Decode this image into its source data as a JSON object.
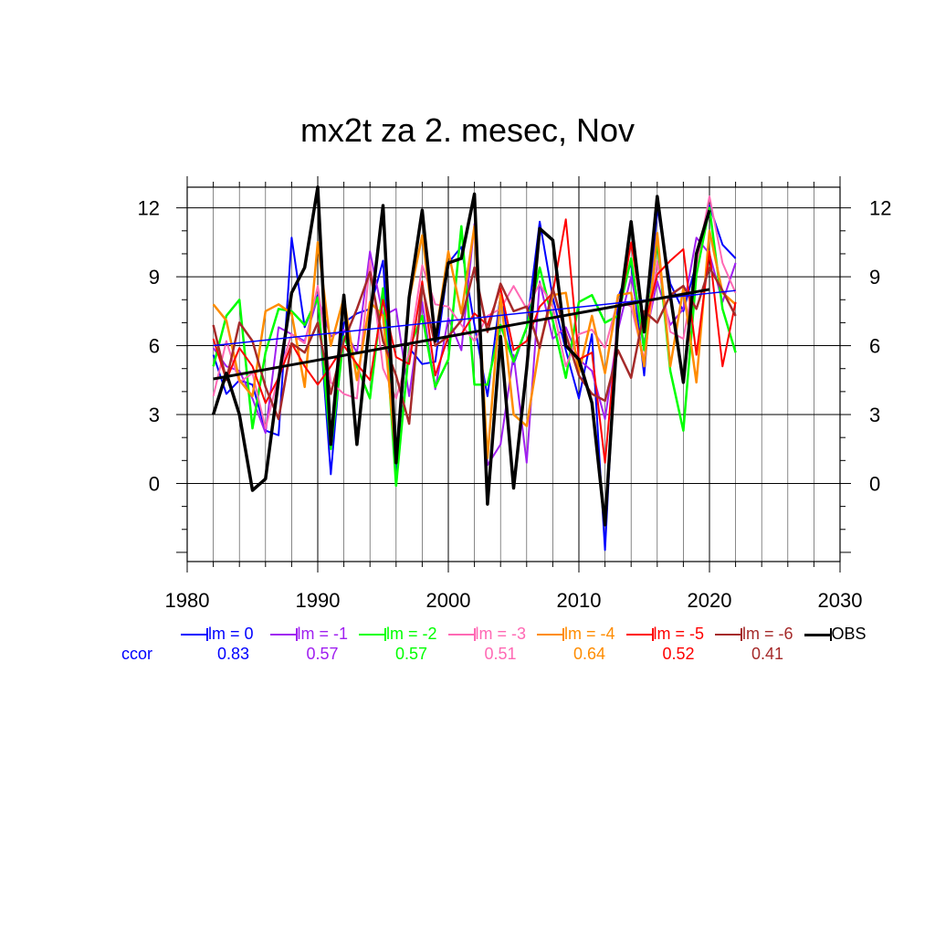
{
  "chart_data": {
    "type": "line",
    "title": "mx2t za 2. mesec, Nov",
    "xlabel": "",
    "ylabel": "",
    "xlim": [
      1980,
      2030
    ],
    "ylim": [
      -3.4,
      12.9
    ],
    "xticks": [
      1980,
      1990,
      2000,
      2010,
      2020,
      2030
    ],
    "yticks": [
      0,
      3,
      6,
      9,
      12
    ],
    "x": [
      1982,
      1983,
      1984,
      1985,
      1986,
      1987,
      1988,
      1989,
      1990,
      1991,
      1992,
      1993,
      1994,
      1995,
      1996,
      1997,
      1998,
      1999,
      2000,
      2001,
      2002,
      2003,
      2004,
      2005,
      2006,
      2007,
      2008,
      2009,
      2010,
      2011,
      2012,
      2013,
      2014,
      2015,
      2016,
      2017,
      2018,
      2019,
      2020,
      2021,
      2022
    ],
    "ccor_label": "ccor",
    "series": [
      {
        "name": "lm = 0",
        "color": "#0000ff",
        "width": 2,
        "ccor": "0.83",
        "values": [
          5.6,
          3.9,
          4.5,
          4.3,
          2.3,
          2.1,
          10.7,
          6.8,
          8.2,
          0.4,
          7.0,
          7.4,
          7.6,
          9.7,
          0.3,
          5.9,
          5.2,
          5.3,
          9.6,
          10.3,
          6.9,
          3.8,
          8.2,
          5.2,
          6.8,
          11.4,
          8.1,
          5.8,
          3.7,
          6.5,
          -2.9,
          8.1,
          9.6,
          4.7,
          12.0,
          8.7,
          7.5,
          9.6,
          12.1,
          10.4,
          9.8
        ]
      },
      {
        "name": "lm = -1",
        "color": "#a020f0",
        "width": 2,
        "ccor": "0.57",
        "values": [
          5.9,
          5.1,
          4.9,
          3.7,
          2.2,
          6.8,
          6.5,
          6.2,
          8.1,
          6.4,
          6.7,
          5.7,
          10.1,
          7.3,
          7.6,
          3.8,
          7.9,
          4.1,
          7.2,
          5.8,
          11.3,
          0.8,
          1.7,
          5.6,
          0.9,
          8.8,
          6.3,
          6.8,
          5.4,
          4.9,
          2.8,
          6.7,
          9.0,
          6.1,
          8.8,
          6.9,
          7.6,
          10.7,
          10.0,
          7.9,
          9.6
        ]
      },
      {
        "name": "lm = -2",
        "color": "#00ff00",
        "width": 2.5,
        "ccor": "0.57",
        "values": [
          5.1,
          7.3,
          8.0,
          2.4,
          5.7,
          7.6,
          7.5,
          6.9,
          8.1,
          1.5,
          6.4,
          5.1,
          3.7,
          8.5,
          -0.1,
          5.9,
          7.3,
          4.2,
          5.4,
          11.2,
          4.3,
          4.3,
          6.9,
          5.3,
          6.8,
          9.4,
          7.1,
          4.6,
          7.9,
          8.2,
          7.0,
          7.3,
          9.8,
          5.8,
          10.6,
          4.9,
          2.3,
          9.1,
          12.0,
          7.6,
          5.7
        ]
      },
      {
        "name": "lm = -3",
        "color": "#ff69b4",
        "width": 2,
        "ccor": "0.51",
        "values": [
          3.8,
          6.2,
          4.4,
          4.8,
          2.4,
          4.7,
          6.5,
          6.1,
          8.6,
          4.4,
          3.9,
          3.7,
          9.7,
          5.0,
          3.7,
          5.7,
          9.5,
          7.8,
          7.7,
          6.9,
          6.2,
          7.3,
          7.6,
          8.6,
          7.6,
          8.7,
          7.7,
          5.1,
          6.5,
          6.7,
          5.9,
          8.0,
          7.7,
          5.4,
          9.7,
          6.6,
          6.3,
          9.5,
          12.5,
          9.6,
          8.3
        ]
      },
      {
        "name": "lm = -4",
        "color": "#ff8c00",
        "width": 2.5,
        "ccor": "0.64",
        "values": [
          7.8,
          7.1,
          4.5,
          3.8,
          7.5,
          7.8,
          7.4,
          4.2,
          10.5,
          6.0,
          8.1,
          4.5,
          7.9,
          7.3,
          1.0,
          8.0,
          10.8,
          6.3,
          10.1,
          7.4,
          11.2,
          1.1,
          8.2,
          3.0,
          2.5,
          6.0,
          8.2,
          8.3,
          4.8,
          7.3,
          4.8,
          8.2,
          8.3,
          5.1,
          10.9,
          5.1,
          8.5,
          4.4,
          11.0,
          8.3,
          7.8
        ]
      },
      {
        "name": "lm = -5",
        "color": "#ff0000",
        "width": 2,
        "ccor": "0.52",
        "values": [
          6.3,
          4.5,
          5.9,
          5.1,
          3.5,
          4.6,
          6.1,
          5.1,
          4.3,
          5.1,
          6.0,
          5.2,
          4.5,
          8.0,
          5.5,
          5.2,
          8.8,
          4.7,
          6.4,
          6.5,
          7.4,
          6.9,
          8.5,
          5.8,
          6.2,
          7.7,
          8.3,
          11.5,
          5.4,
          5.7,
          0.9,
          7.2,
          10.5,
          6.8,
          9.1,
          9.7,
          10.2,
          5.6,
          10.1,
          5.1,
          7.9
        ]
      },
      {
        "name": "lm = -6",
        "color": "#a52a2a",
        "width": 2.5,
        "ccor": "0.41",
        "values": [
          6.9,
          4.5,
          7.0,
          6.2,
          4.2,
          2.8,
          6.1,
          5.7,
          7.0,
          3.9,
          6.2,
          7.6,
          9.2,
          6.2,
          4.7,
          2.6,
          8.6,
          6.0,
          6.4,
          7.1,
          9.4,
          6.6,
          8.7,
          7.5,
          7.7,
          5.9,
          8.5,
          6.5,
          4.7,
          3.9,
          3.6,
          5.8,
          4.6,
          7.5,
          7.0,
          8.2,
          8.6,
          7.6,
          9.4,
          8.4,
          7.3
        ]
      },
      {
        "name": "OBS",
        "color": "#000000",
        "width": 3.5,
        "ccor": "",
        "values": [
          3.0,
          4.8,
          3.0,
          -0.3,
          0.2,
          4.5,
          8.3,
          9.4,
          12.9,
          1.7,
          8.2,
          1.7,
          7.2,
          12.1,
          0.9,
          8.1,
          11.9,
          6.2,
          9.6,
          9.8,
          12.6,
          -0.9,
          6.4,
          -0.2,
          5.0,
          11.1,
          10.6,
          6.0,
          5.4,
          3.5,
          -1.8,
          7.1,
          11.4,
          6.6,
          12.5,
          8.2,
          4.4,
          10.0,
          11.9,
          null,
          null
        ]
      }
    ],
    "trends": [
      {
        "color": "#0000ff",
        "width": 1.5,
        "x": [
          1982,
          2022
        ],
        "y": [
          6.0,
          8.4
        ]
      },
      {
        "color": "#000000",
        "width": 3,
        "x": [
          1982,
          2020
        ],
        "y": [
          4.55,
          8.45
        ]
      }
    ],
    "grid": true,
    "legend_placement": "bottom"
  }
}
